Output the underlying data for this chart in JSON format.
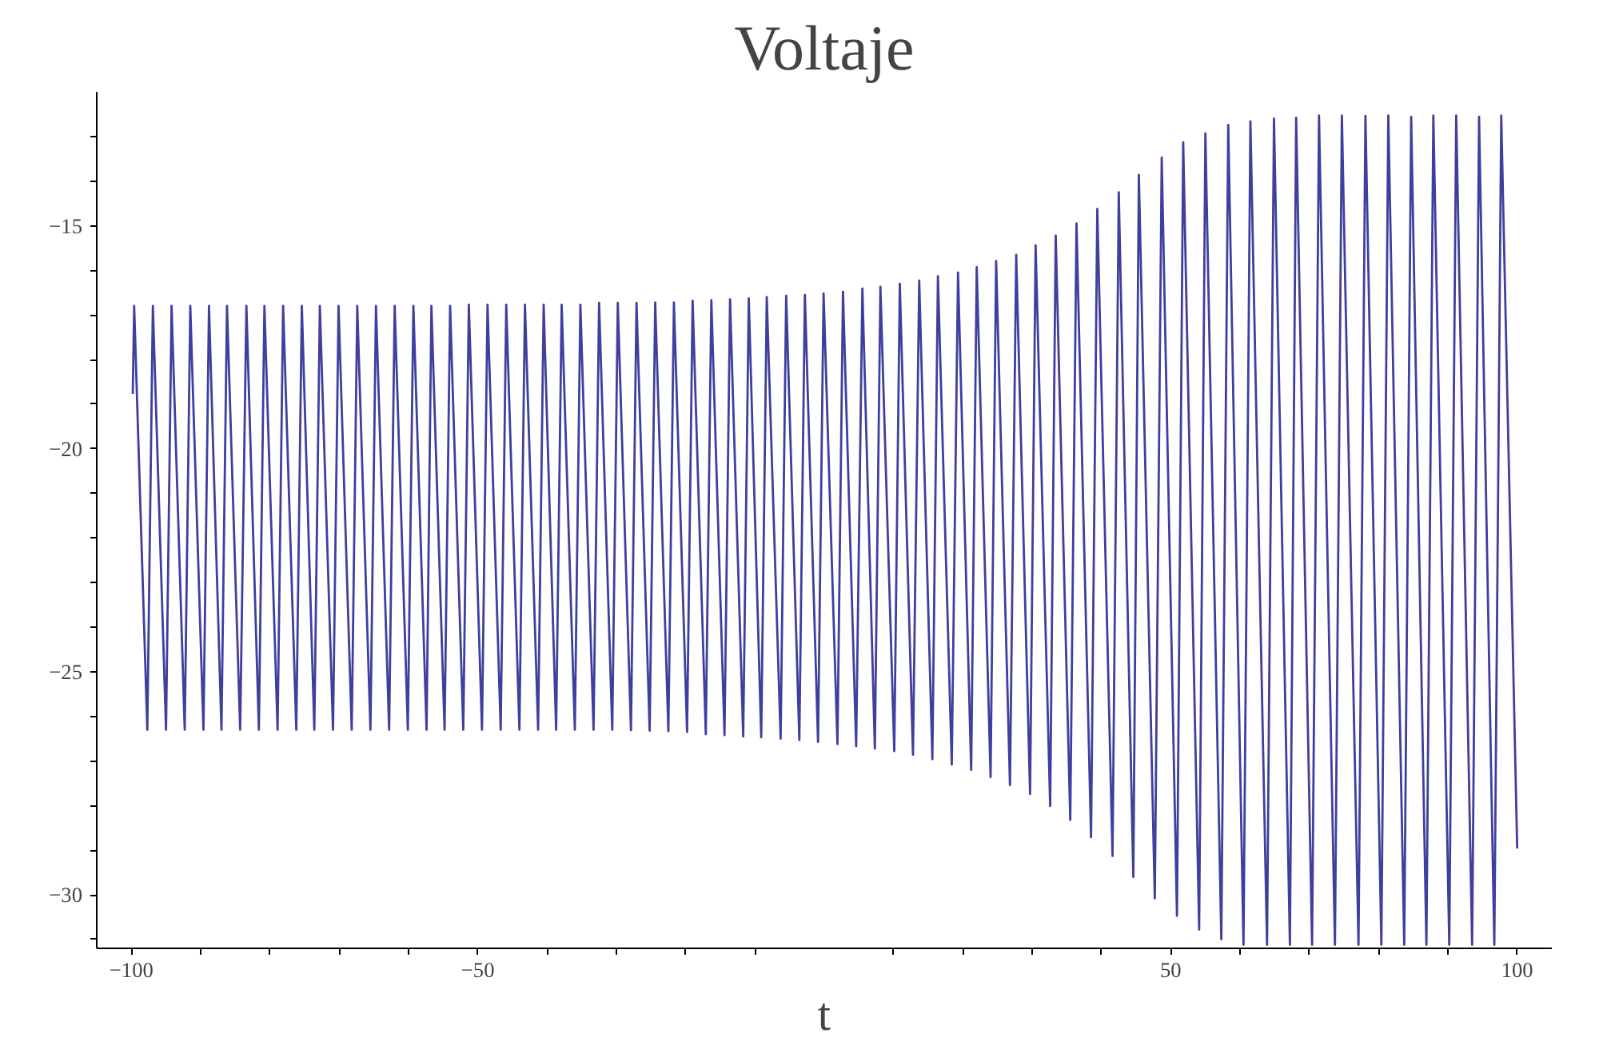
{
  "chart_data": {
    "type": "line",
    "title": "Voltaje",
    "xlabel": "t",
    "xlim": [
      -105,
      105
    ],
    "ylim": [
      -31.2,
      -12
    ],
    "xticks": [
      -100,
      {
        "value": -90,
        "label": null
      },
      {
        "value": -80,
        "label": null
      },
      {
        "value": -70,
        "label": null
      },
      {
        "value": -60,
        "label": null
      },
      -50,
      {
        "value": -40,
        "label": null
      },
      {
        "value": -30,
        "label": null
      },
      {
        "value": -20,
        "label": null
      },
      {
        "value": -10,
        "label": null
      },
      {
        "value": 10,
        "label": null
      },
      {
        "value": 20,
        "label": null
      },
      {
        "value": 30,
        "label": null
      },
      {
        "value": 40,
        "label": null
      },
      50,
      {
        "value": 60,
        "label": null
      },
      {
        "value": 70,
        "label": null
      },
      {
        "value": 80,
        "label": null
      },
      {
        "value": 90,
        "label": null
      },
      100
    ],
    "yticks": [
      {
        "value": -13,
        "label": null
      },
      {
        "value": -14,
        "label": null
      },
      -15,
      {
        "value": -16,
        "label": null
      },
      {
        "value": -17,
        "label": null
      },
      {
        "value": -18,
        "label": null
      },
      {
        "value": -19,
        "label": null
      },
      -20,
      {
        "value": -21,
        "label": null
      },
      {
        "value": -22,
        "label": null
      },
      {
        "value": -23,
        "label": null
      },
      {
        "value": -24,
        "label": null
      },
      -25,
      {
        "value": -26,
        "label": null
      },
      {
        "value": -27,
        "label": null
      },
      {
        "value": -28,
        "label": null
      },
      {
        "value": -29,
        "label": null
      },
      -30,
      {
        "value": -31,
        "label": null
      }
    ],
    "line_style": "solid",
    "series": [
      {
        "color": "#3f3f9f",
        "x": [
          -99.8,
          -99.6,
          -97.7,
          -96.9,
          -95.0,
          -94.2,
          -92.3,
          -91.5,
          -89.6,
          -88.8,
          -87.0,
          -86.2,
          -84.3,
          -83.4,
          -81.6,
          -80.8,
          -78.9,
          -78.1,
          -76.2,
          -75.4,
          -73.6,
          -72.8,
          -70.9,
          -70.1,
          -68.2,
          -67.4,
          -65.5,
          -64.7,
          -62.8,
          -62.0,
          -60.1,
          -59.3,
          -57.4,
          -56.7,
          -54.8,
          -54.0,
          -52.1,
          -51.3,
          -49.4,
          -48.6,
          -46.7,
          -45.9,
          -44.0,
          -43.2,
          -41.3,
          -40.5,
          -38.7,
          -37.9,
          -36.0,
          -35.2,
          -33.3,
          -32.5,
          -30.6,
          -29.8,
          -27.9,
          -27.1,
          -25.2,
          -24.4,
          -22.5,
          -21.7,
          -19.8,
          -19.0,
          -17.1,
          -16.3,
          -14.4,
          -13.6,
          -11.7,
          -10.9,
          -9.1,
          -8.3,
          -6.3,
          -5.5,
          -3.6,
          -2.8,
          -0.9,
          -0.1,
          1.9,
          2.7,
          4.6,
          5.5,
          7.3,
          8.1,
          10.1,
          10.9,
          12.8,
          13.7,
          15.6,
          16.4,
          18.4,
          19.3,
          21.2,
          22.0,
          24.0,
          24.8,
          26.8,
          27.7,
          29.7,
          30.5,
          32.6,
          33.4,
          35.5,
          36.4,
          38.5,
          39.4,
          41.6,
          42.5,
          44.6,
          45.4,
          47.7,
          48.7,
          50.9,
          51.8,
          54.1,
          55.0,
          57.3,
          58.3,
          60.5,
          61.5,
          63.9,
          64.9,
          67.2,
          68.1,
          70.4,
          71.4,
          73.7,
          74.7,
          77.1,
          78.1,
          80.4,
          81.4,
          83.7,
          84.7,
          86.9,
          87.9,
          90.2,
          91.2,
          93.5,
          94.5,
          96.7,
          97.7,
          100.0
        ],
        "values": [
          -18.77,
          -16.8,
          -26.3,
          -16.8,
          -26.3,
          -16.8,
          -26.3,
          -16.8,
          -26.3,
          -16.8,
          -26.3,
          -16.8,
          -26.3,
          -16.8,
          -26.3,
          -16.8,
          -26.3,
          -16.8,
          -26.3,
          -16.8,
          -26.3,
          -16.8,
          -26.3,
          -16.8,
          -26.3,
          -16.8,
          -26.3,
          -16.8,
          -26.3,
          -16.8,
          -26.3,
          -16.8,
          -26.3,
          -16.8,
          -26.3,
          -16.8,
          -26.3,
          -16.77,
          -26.3,
          -16.77,
          -26.3,
          -16.77,
          -26.3,
          -16.77,
          -26.3,
          -16.77,
          -26.3,
          -16.77,
          -26.3,
          -16.77,
          -26.3,
          -16.73,
          -26.3,
          -16.73,
          -26.31,
          -16.73,
          -26.32,
          -16.72,
          -26.33,
          -16.72,
          -26.35,
          -16.68,
          -26.4,
          -16.67,
          -26.42,
          -16.65,
          -26.45,
          -16.63,
          -26.47,
          -16.6,
          -26.5,
          -16.57,
          -26.53,
          -16.55,
          -26.57,
          -16.52,
          -26.62,
          -16.48,
          -26.67,
          -16.41,
          -26.72,
          -16.37,
          -26.78,
          -16.3,
          -26.86,
          -16.23,
          -26.96,
          -16.13,
          -27.08,
          -16.05,
          -27.2,
          -15.93,
          -27.36,
          -15.79,
          -27.54,
          -15.65,
          -27.74,
          -15.44,
          -28.01,
          -15.22,
          -28.32,
          -14.95,
          -28.71,
          -14.62,
          -29.13,
          -14.25,
          -29.6,
          -13.86,
          -30.08,
          -13.47,
          -30.47,
          -13.13,
          -30.78,
          -12.93,
          -31.0,
          -12.74,
          -31.12,
          -12.66,
          -31.12,
          -12.6,
          -31.12,
          -12.58,
          -31.12,
          -12.53,
          -31.12,
          -12.53,
          -31.12,
          -12.54,
          -31.12,
          -12.53,
          -31.12,
          -12.56,
          -31.12,
          -12.53,
          -31.12,
          -12.53,
          -31.12,
          -12.56,
          -31.12,
          -12.53,
          -28.96
        ]
      }
    ]
  }
}
